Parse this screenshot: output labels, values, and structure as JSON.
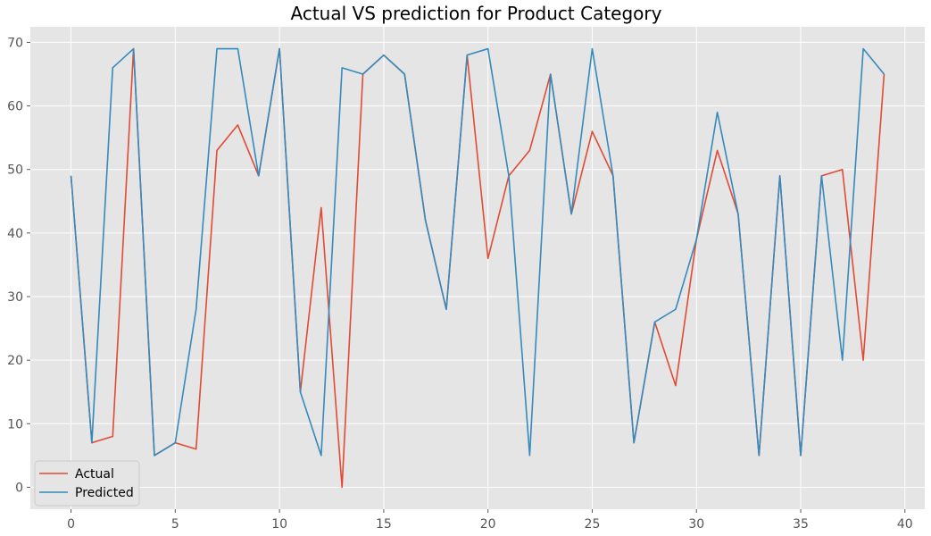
{
  "chart_data": {
    "type": "line",
    "title": "Actual VS prediction for Product Category",
    "xlabel": "",
    "ylabel": "",
    "xlim": [
      -1.95,
      40.95
    ],
    "ylim": [
      -3.45,
      72.45
    ],
    "xticks": [
      0,
      5,
      10,
      15,
      20,
      25,
      30,
      35,
      40
    ],
    "yticks": [
      0,
      10,
      20,
      30,
      40,
      50,
      60,
      70
    ],
    "grid": true,
    "legend_position": "lower-left",
    "x": [
      0,
      1,
      2,
      3,
      4,
      5,
      6,
      7,
      8,
      9,
      10,
      11,
      12,
      13,
      14,
      15,
      16,
      17,
      18,
      19,
      20,
      21,
      22,
      23,
      24,
      25,
      26,
      27,
      28,
      29,
      30,
      31,
      32,
      33,
      34,
      35,
      36,
      37,
      38,
      39
    ],
    "series": [
      {
        "name": "Actual",
        "color": "#E24A33",
        "values": [
          49,
          7,
          8,
          69,
          5,
          7,
          6,
          53,
          57,
          49,
          69,
          15,
          44,
          0,
          65,
          68,
          65,
          42,
          28,
          68,
          36,
          49,
          53,
          65,
          43,
          56,
          49,
          7,
          26,
          16,
          39,
          53,
          43,
          5,
          49,
          5,
          49,
          50,
          20,
          65
        ]
      },
      {
        "name": "Predicted",
        "color": "#348ABD",
        "values": [
          49,
          7,
          66,
          69,
          5,
          7,
          28,
          69,
          69,
          49,
          69,
          15,
          5,
          66,
          65,
          68,
          65,
          42,
          28,
          68,
          69,
          49,
          5,
          65,
          43,
          69,
          49,
          7,
          26,
          28,
          39,
          59,
          43,
          5,
          49,
          5,
          49,
          20,
          69,
          65
        ]
      }
    ]
  },
  "style": {
    "plot_background": "#E5E5E5",
    "grid_color": "#FFFFFF",
    "tick_color": "#555555"
  }
}
